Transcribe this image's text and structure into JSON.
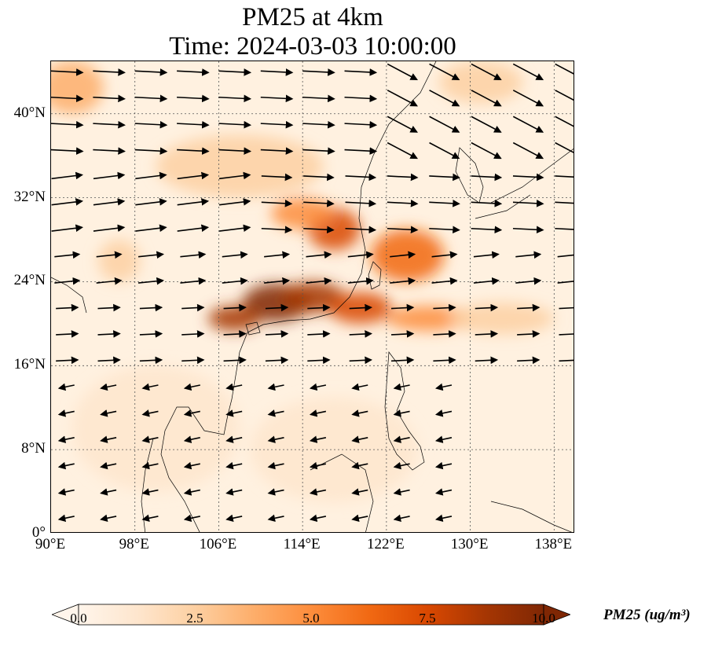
{
  "title_line1": "PM25 at 4km",
  "title_line2": "Time: 2024-03-03 10:00:00",
  "map": {
    "lon_range": [
      90,
      140
    ],
    "lat_range": [
      0,
      45
    ],
    "lat_ticks": [
      {
        "value": 0,
        "label": "0°"
      },
      {
        "value": 8,
        "label": "8°N"
      },
      {
        "value": 16,
        "label": "16°N"
      },
      {
        "value": 24,
        "label": "24°N"
      },
      {
        "value": 32,
        "label": "32°N"
      },
      {
        "value": 40,
        "label": "40°N"
      }
    ],
    "lon_ticks": [
      {
        "value": 90,
        "label": "90°E"
      },
      {
        "value": 98,
        "label": "98°E"
      },
      {
        "value": 106,
        "label": "106°E"
      },
      {
        "value": 114,
        "label": "114°E"
      },
      {
        "value": 122,
        "label": "122°E"
      },
      {
        "value": 130,
        "label": "130°E"
      },
      {
        "value": 138,
        "label": "138°E"
      }
    ],
    "gridlines": true,
    "pollution_blobs": [
      {
        "lon": 111.5,
        "lat": 22.0,
        "rlon": 3.2,
        "rlat": 1.8,
        "value": 10.0
      },
      {
        "lon": 107.5,
        "lat": 20.5,
        "rlon": 2.5,
        "rlat": 1.2,
        "value": 9.0
      },
      {
        "lon": 115.0,
        "lat": 22.5,
        "rlon": 3.0,
        "rlat": 1.5,
        "value": 8.5
      },
      {
        "lon": 117.0,
        "lat": 29.0,
        "rlon": 2.5,
        "rlat": 2.0,
        "value": 7.5
      },
      {
        "lon": 119.5,
        "lat": 21.5,
        "rlon": 3.0,
        "rlat": 1.5,
        "value": 7.0
      },
      {
        "lon": 124.0,
        "lat": 26.5,
        "rlon": 3.5,
        "rlat": 2.5,
        "value": 6.5
      },
      {
        "lon": 114.0,
        "lat": 30.5,
        "rlon": 3.0,
        "rlat": 1.5,
        "value": 5.0
      },
      {
        "lon": 126.0,
        "lat": 20.5,
        "rlon": 4.0,
        "rlat": 1.2,
        "value": 4.5
      },
      {
        "lon": 133.0,
        "lat": 20.5,
        "rlon": 5.0,
        "rlat": 1.5,
        "value": 3.0
      },
      {
        "lon": 92.0,
        "lat": 42.5,
        "rlon": 3.0,
        "rlat": 2.5,
        "value": 3.5
      },
      {
        "lon": 131.0,
        "lat": 43.0,
        "rlon": 4.0,
        "rlat": 2.0,
        "value": 2.5
      },
      {
        "lon": 96.5,
        "lat": 26.0,
        "rlon": 2.0,
        "rlat": 2.0,
        "value": 2.5
      },
      {
        "lon": 108.0,
        "lat": 35.0,
        "rlon": 8.0,
        "rlat": 3.0,
        "value": 2.0
      },
      {
        "lon": 100.0,
        "lat": 10.0,
        "rlon": 8.0,
        "rlat": 6.0,
        "value": 1.8
      },
      {
        "lon": 117.0,
        "lat": 8.0,
        "rlon": 8.0,
        "rlat": 5.0,
        "value": 1.2
      }
    ],
    "wind_regions": [
      {
        "lat_min": 36,
        "lat_max": 45,
        "lon_min": 90,
        "lon_max": 122,
        "u": 1.0,
        "v": -0.05,
        "speed": 1.0
      },
      {
        "lat_min": 36,
        "lat_max": 45,
        "lon_min": 122,
        "lon_max": 140,
        "u": 0.85,
        "v": -0.45,
        "speed": 1.1
      },
      {
        "lat_min": 28,
        "lat_max": 36,
        "lon_min": 90,
        "lon_max": 110,
        "u": 0.97,
        "v": 0.12,
        "speed": 1.0
      },
      {
        "lat_min": 28,
        "lat_max": 36,
        "lon_min": 110,
        "lon_max": 140,
        "u": 1.0,
        "v": -0.05,
        "speed": 0.95
      },
      {
        "lat_min": 22,
        "lat_max": 28,
        "lon_min": 90,
        "lon_max": 140,
        "u": 0.98,
        "v": 0.1,
        "speed": 0.8
      },
      {
        "lat_min": 16,
        "lat_max": 22,
        "lon_min": 90,
        "lon_max": 140,
        "u": 0.99,
        "v": 0.05,
        "speed": 0.7
      },
      {
        "lat_min": 0,
        "lat_max": 16,
        "lon_min": 90,
        "lon_max": 130,
        "u": -0.97,
        "v": -0.2,
        "speed": 0.5
      }
    ]
  },
  "colorbar": {
    "label": "PM25 (ug/m³)",
    "min": 0.0,
    "max": 10.0,
    "extend": "both",
    "ticks": [
      "0.0",
      "2.5",
      "5.0",
      "7.5",
      "10.0"
    ],
    "colors": [
      "#fff5eb",
      "#fee6ce",
      "#fdd0a2",
      "#fdae6b",
      "#fd8d3c",
      "#f16913",
      "#d94801",
      "#a63603",
      "#7f2704"
    ]
  }
}
